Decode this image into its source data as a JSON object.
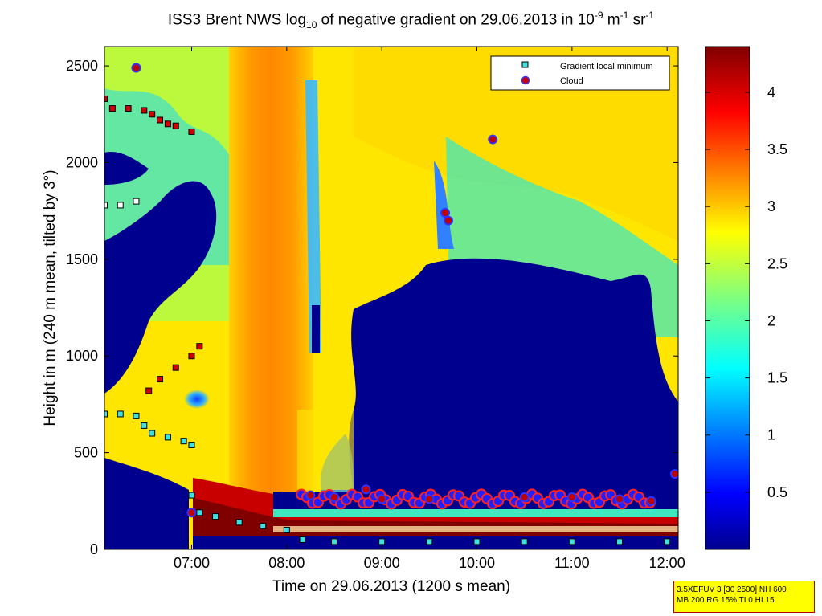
{
  "chart_data": {
    "type": "heatmap",
    "title": {
      "main": "ISS3 Brent NWS log",
      "sub": "10",
      "rest": " of negative gradient on 29.06.2013 in 10",
      "exp1": "-9",
      "unit1": " m",
      "exp2": "-1",
      "unit2": " sr",
      "exp3": "-1"
    },
    "xlabel": "Time on 29.06.2013 (1200 s mean)",
    "ylabel": "Height in m (240 m mean, tilted by 3°)",
    "xlim": [
      "06:05",
      "12:07"
    ],
    "ylim": [
      0,
      2600
    ],
    "x_ticks": [
      "07:00",
      "08:00",
      "09:00",
      "10:00",
      "11:00",
      "12:00"
    ],
    "y_ticks": [
      "0",
      "500",
      "1000",
      "1500",
      "2000",
      "2500"
    ],
    "colorbar": {
      "range": [
        0,
        4.4
      ],
      "ticks": [
        "0.5",
        "1",
        "1.5",
        "2",
        "2.5",
        "3",
        "3.5",
        "4"
      ],
      "colormap": "jet"
    },
    "legend": {
      "placement": "top-right",
      "entries": [
        {
          "label": "Gradient local minimum",
          "marker": "square",
          "color": "#40e0e0"
        },
        {
          "label": "Cloud",
          "marker": "circle",
          "color": "#d00000"
        }
      ]
    },
    "series": [
      {
        "name": "Gradient local minimum",
        "points": [
          [
            "06:05",
            700
          ],
          [
            "06:15",
            700
          ],
          [
            "06:25",
            690
          ],
          [
            "06:30",
            640
          ],
          [
            "06:35",
            600
          ],
          [
            "06:45",
            580
          ],
          [
            "06:55",
            560
          ],
          [
            "07:00",
            540
          ],
          [
            "06:05",
            1780
          ],
          [
            "06:15",
            1780
          ],
          [
            "06:25",
            1800
          ],
          [
            "07:00",
            280
          ],
          [
            "07:05",
            190
          ],
          [
            "07:15",
            170
          ],
          [
            "07:30",
            140
          ],
          [
            "07:45",
            120
          ],
          [
            "08:00",
            100
          ],
          [
            "08:10",
            50
          ],
          [
            "08:30",
            40
          ],
          [
            "09:00",
            40
          ],
          [
            "09:30",
            40
          ],
          [
            "10:00",
            40
          ],
          [
            "10:30",
            40
          ],
          [
            "11:00",
            40
          ],
          [
            "11:30",
            40
          ],
          [
            "12:00",
            40
          ]
        ]
      },
      {
        "name": "Cloud",
        "points": [
          [
            "06:05",
            2330
          ],
          [
            "06:10",
            2280
          ],
          [
            "06:20",
            2280
          ],
          [
            "06:30",
            2270
          ],
          [
            "06:35",
            2250
          ],
          [
            "06:40",
            2220
          ],
          [
            "06:45",
            2200
          ],
          [
            "06:50",
            2190
          ],
          [
            "07:00",
            2160
          ],
          [
            "06:25",
            2490
          ],
          [
            "06:33",
            820
          ],
          [
            "06:40",
            880
          ],
          [
            "06:50",
            940
          ],
          [
            "07:00",
            1000
          ],
          [
            "07:05",
            1050
          ],
          [
            "07:00",
            190
          ],
          [
            "08:15",
            280
          ],
          [
            "08:30",
            270
          ],
          [
            "08:50",
            310
          ],
          [
            "09:00",
            260
          ],
          [
            "09:30",
            260
          ],
          [
            "09:40",
            1740
          ],
          [
            "09:42",
            1700
          ],
          [
            "10:10",
            2120
          ],
          [
            "10:30",
            270
          ],
          [
            "11:00",
            270
          ],
          [
            "11:30",
            260
          ],
          [
            "11:50",
            250
          ],
          [
            "12:05",
            390
          ]
        ]
      }
    ]
  },
  "infobox": {
    "line1": "3.5XEFUV 3 [30 2500] NH 600",
    "line2": "MB 200 RG 15% TI 0 HI 15"
  }
}
